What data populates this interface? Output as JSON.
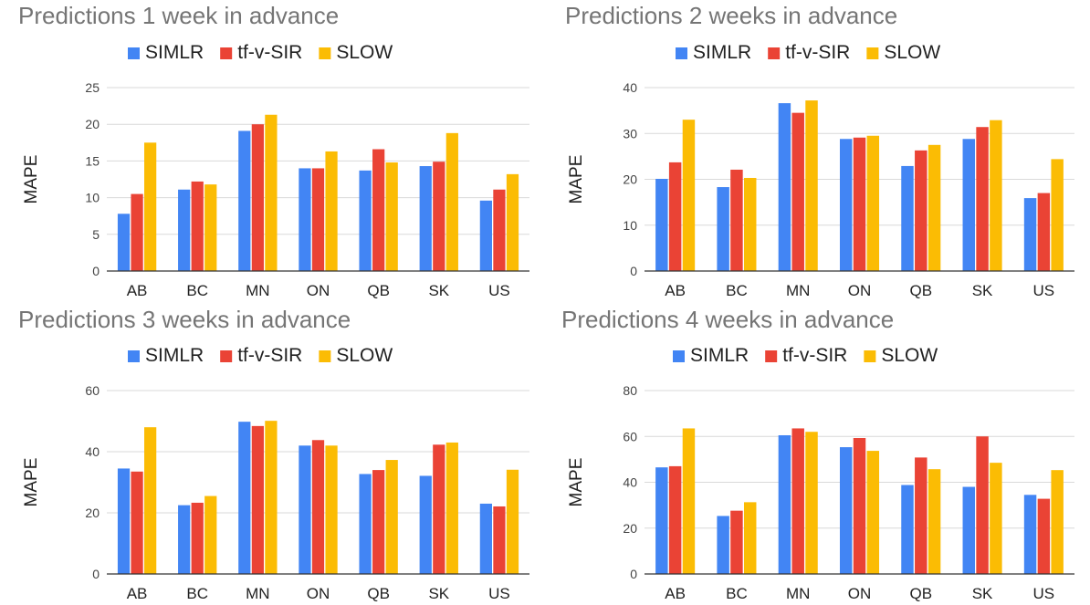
{
  "chart_data": [
    {
      "type": "bar",
      "title": "Predictions 1 week in advance",
      "ylabel": "MAPE",
      "xlabel": "",
      "ylim": [
        0,
        25
      ],
      "yticks": [
        "0",
        "5",
        "10",
        "15",
        "20",
        "25"
      ],
      "categories": [
        "AB",
        "BC",
        "MN",
        "ON",
        "QB",
        "SK",
        "US"
      ],
      "legend_position": "top",
      "series": [
        {
          "name": "SIMLR",
          "color": "#4285F4",
          "values": [
            7.8,
            11.1,
            19.1,
            14.0,
            13.7,
            14.3,
            9.6
          ]
        },
        {
          "name": "tf-v-SIR",
          "color": "#EA4335",
          "values": [
            10.5,
            12.2,
            20.0,
            14.0,
            16.6,
            14.9,
            11.1
          ]
        },
        {
          "name": "SLOW",
          "color": "#FBBC04",
          "values": [
            17.5,
            11.8,
            21.3,
            16.3,
            14.8,
            18.8,
            13.2
          ]
        }
      ]
    },
    {
      "type": "bar",
      "title": "Predictions 2 weeks in advance",
      "ylabel": "MAPE",
      "xlabel": "",
      "ylim": [
        0,
        40
      ],
      "yticks": [
        "0",
        "10",
        "20",
        "30",
        "40"
      ],
      "categories": [
        "AB",
        "BC",
        "MN",
        "ON",
        "QB",
        "SK",
        "US"
      ],
      "legend_position": "top",
      "series": [
        {
          "name": "SIMLR",
          "color": "#4285F4",
          "values": [
            20.1,
            18.3,
            36.6,
            28.8,
            22.9,
            28.8,
            15.9
          ]
        },
        {
          "name": "tf-v-SIR",
          "color": "#EA4335",
          "values": [
            23.7,
            22.1,
            34.5,
            29.1,
            26.3,
            31.4,
            17.0
          ]
        },
        {
          "name": "SLOW",
          "color": "#FBBC04",
          "values": [
            33.0,
            20.3,
            37.2,
            29.5,
            27.5,
            32.9,
            24.4
          ]
        }
      ]
    },
    {
      "type": "bar",
      "title": "Predictions 3 weeks in advance",
      "ylabel": "MAPE",
      "xlabel": "",
      "ylim": [
        0,
        60
      ],
      "yticks": [
        "0",
        "20",
        "40",
        "60"
      ],
      "categories": [
        "AB",
        "BC",
        "MN",
        "ON",
        "QB",
        "SK",
        "US"
      ],
      "legend_position": "top",
      "series": [
        {
          "name": "SIMLR",
          "color": "#4285F4",
          "values": [
            34.5,
            22.5,
            49.8,
            42.0,
            32.7,
            32.1,
            23.0
          ]
        },
        {
          "name": "tf-v-SIR",
          "color": "#EA4335",
          "values": [
            33.5,
            23.3,
            48.4,
            43.8,
            34.0,
            42.3,
            22.1
          ]
        },
        {
          "name": "SLOW",
          "color": "#FBBC04",
          "values": [
            48.0,
            25.5,
            50.1,
            42.0,
            37.3,
            43.0,
            34.1
          ]
        }
      ]
    },
    {
      "type": "bar",
      "title": "Predictions 4 weeks in advance",
      "ylabel": "MAPE",
      "xlabel": "",
      "ylim": [
        0,
        80
      ],
      "yticks": [
        "0",
        "20",
        "40",
        "60",
        "80"
      ],
      "categories": [
        "AB",
        "BC",
        "MN",
        "ON",
        "QB",
        "SK",
        "US"
      ],
      "legend_position": "top",
      "series": [
        {
          "name": "SIMLR",
          "color": "#4285F4",
          "values": [
            46.5,
            25.3,
            60.5,
            55.3,
            38.8,
            38.0,
            34.5
          ]
        },
        {
          "name": "tf-v-SIR",
          "color": "#EA4335",
          "values": [
            47.0,
            27.6,
            63.5,
            59.3,
            50.8,
            60.0,
            32.8
          ]
        },
        {
          "name": "SLOW",
          "color": "#FBBC04",
          "values": [
            63.5,
            31.3,
            62.0,
            53.7,
            45.7,
            48.5,
            45.3
          ]
        }
      ]
    }
  ]
}
